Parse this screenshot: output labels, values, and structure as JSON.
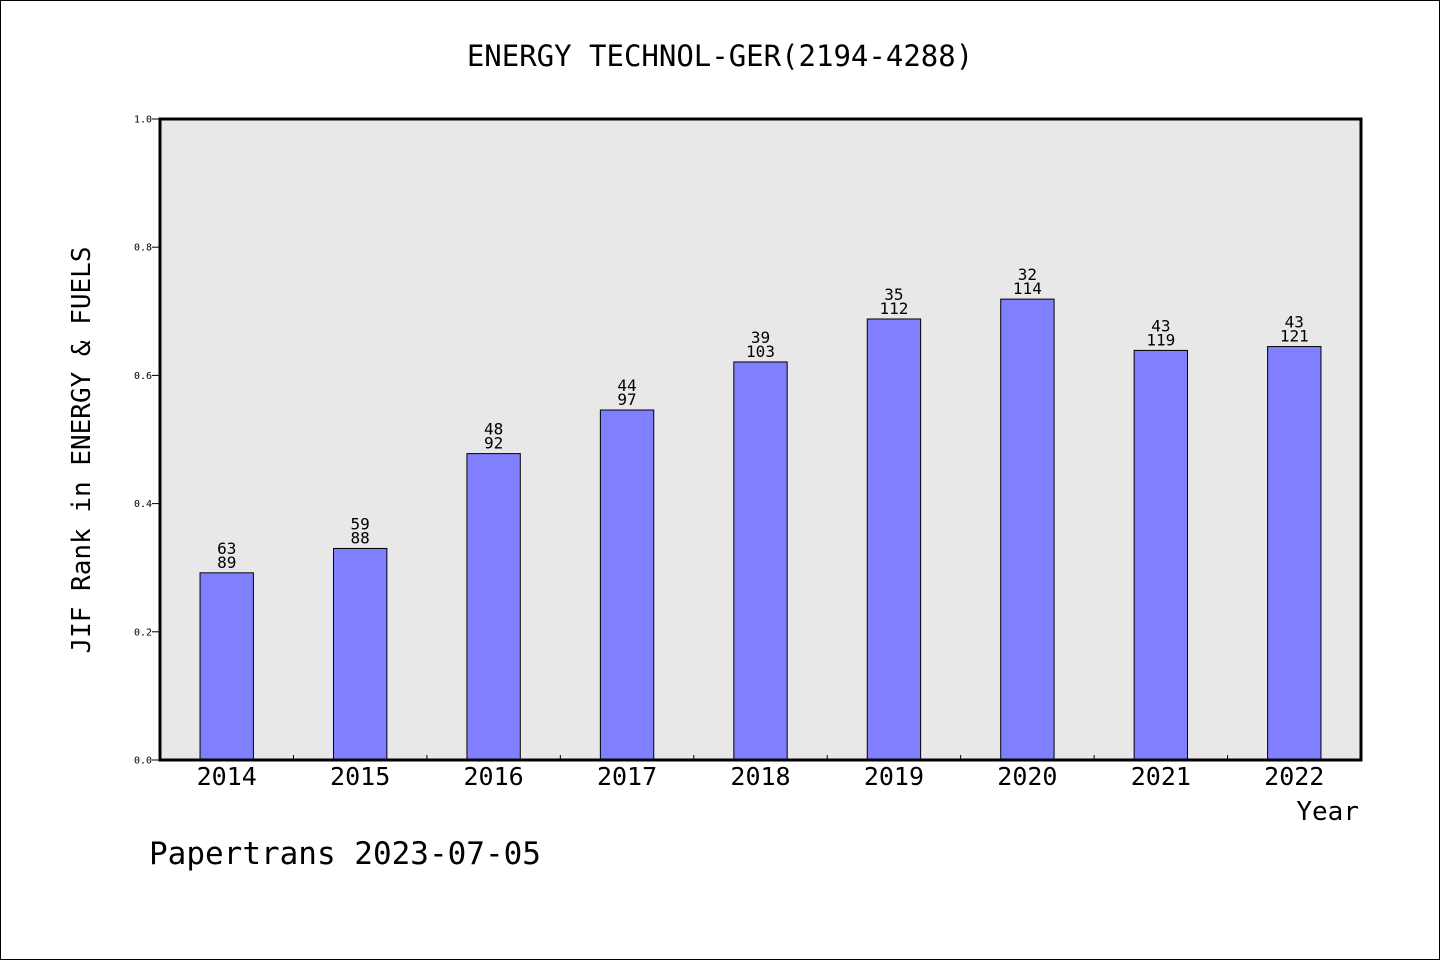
{
  "chart_data": {
    "type": "bar",
    "title": "ENERGY TECHNOL-GER(2194-4288)",
    "xlabel": "Year",
    "ylabel": "JIF Rank in ENERGY & FUELS",
    "ylim": [
      0,
      1.0
    ],
    "yticks": [
      "0.0",
      "0.2",
      "0.4",
      "0.6",
      "0.8",
      "1.0"
    ],
    "yticks_values": [
      0,
      0.2,
      0.4,
      0.6,
      0.8,
      1.0
    ],
    "categories": [
      "2014",
      "2015",
      "2016",
      "2017",
      "2018",
      "2019",
      "2020",
      "2021",
      "2022"
    ],
    "values": [
      0.292,
      0.33,
      0.478,
      0.546,
      0.621,
      0.688,
      0.719,
      0.639,
      0.645
    ],
    "rank": [
      "63",
      "59",
      "48",
      "44",
      "39",
      "35",
      "32",
      "43",
      "43"
    ],
    "total": [
      "89",
      "88",
      "92",
      "97",
      "103",
      "112",
      "114",
      "119",
      "121"
    ],
    "grid": false,
    "legend": "none",
    "colors": {
      "bar_fill": "#8080ff",
      "bar_stroke": "#000000",
      "plot_bg": "#e8e8e8"
    }
  },
  "footer": "Papertrans 2023-07-05"
}
